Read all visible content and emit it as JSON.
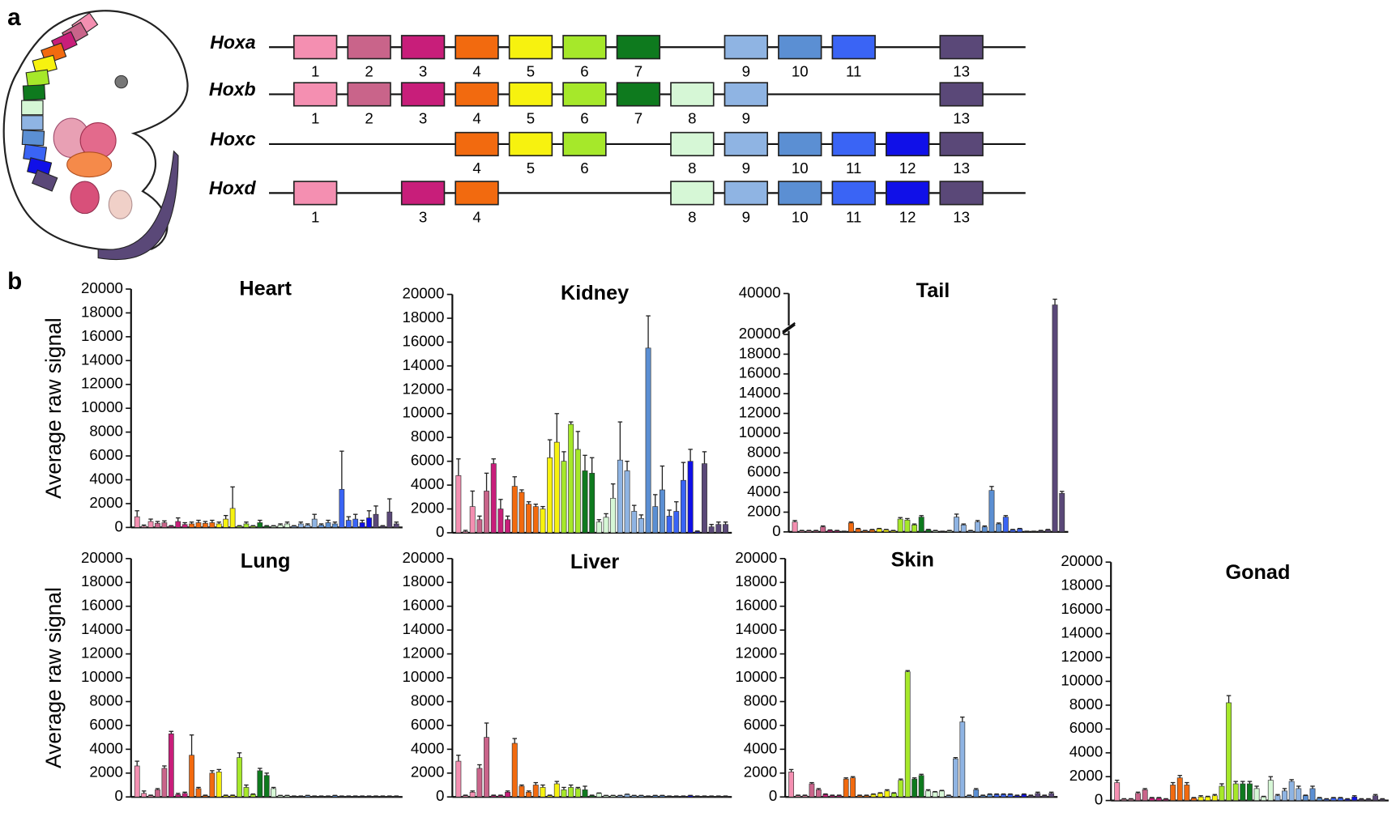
{
  "panel_labels": [
    "a",
    "b"
  ],
  "clusters": [
    {
      "name": "Hoxa",
      "genes": [
        "1",
        "2",
        "3",
        "4",
        "5",
        "6",
        "7",
        "9",
        "10",
        "11",
        "13"
      ]
    },
    {
      "name": "Hoxb",
      "genes": [
        "1",
        "2",
        "3",
        "4",
        "5",
        "6",
        "7",
        "8",
        "9",
        "13"
      ]
    },
    {
      "name": "Hoxc",
      "genes": [
        "4",
        "5",
        "6",
        "8",
        "9",
        "10",
        "11",
        "12",
        "13"
      ]
    },
    {
      "name": "Hoxd",
      "genes": [
        "1",
        "3",
        "4",
        "8",
        "9",
        "10",
        "11",
        "12",
        "13"
      ]
    }
  ],
  "paralog_colors": [
    "#f48fb1",
    "#c9648a",
    "#c81e7a",
    "#f26a0f",
    "#f7f20f",
    "#a6e82a",
    "#0e7a1e",
    "#d6f7d6",
    "#8fb4e3",
    "#5b8fd3",
    "#3a64f5",
    "#1010e8",
    "#5a4878"
  ],
  "bar_colors": [
    "#f48fb1",
    "#f48fb1",
    "#f48fb1",
    "#c9648a",
    "#c9648a",
    "#c81e7a",
    "#c81e7a",
    "#c81e7a",
    "#f26a0f",
    "#f26a0f",
    "#f26a0f",
    "#f26a0f",
    "#f7f20f",
    "#f7f20f",
    "#f7f20f",
    "#a6e82a",
    "#a6e82a",
    "#a6e82a",
    "#0e7a1e",
    "#0e7a1e",
    "#d6f7d6",
    "#d6f7d6",
    "#d6f7d6",
    "#8fb4e3",
    "#8fb4e3",
    "#8fb4e3",
    "#8fb4e3",
    "#5b8fd3",
    "#5b8fd3",
    "#5b8fd3",
    "#3a64f5",
    "#3a64f5",
    "#3a64f5",
    "#1010e8",
    "#1010e8",
    "#5a4878",
    "#5a4878",
    "#5a4878",
    "#5a4878"
  ],
  "chart_data": [
    {
      "type": "bar",
      "title": "Heart",
      "y_label": "Average raw signal",
      "ylim": [
        0,
        20000
      ],
      "yticks": [
        0,
        2000,
        4000,
        6000,
        8000,
        10000,
        12000,
        14000,
        16000,
        18000,
        20000
      ],
      "values": [
        900,
        100,
        500,
        350,
        400,
        100,
        500,
        250,
        300,
        400,
        350,
        400,
        300,
        700,
        1600,
        100,
        300,
        100,
        400,
        100,
        100,
        200,
        300,
        100,
        300,
        200,
        700,
        200,
        400,
        300,
        3200,
        600,
        700,
        400,
        800,
        1100,
        100,
        1300,
        300
      ],
      "errors": [
        500,
        100,
        200,
        150,
        150,
        50,
        300,
        150,
        150,
        200,
        150,
        200,
        150,
        300,
        1800,
        50,
        150,
        50,
        200,
        50,
        50,
        100,
        150,
        50,
        150,
        100,
        400,
        100,
        200,
        150,
        3200,
        300,
        400,
        200,
        600,
        700,
        50,
        1100,
        150
      ]
    },
    {
      "type": "bar",
      "title": "Kidney",
      "ylim": [
        0,
        20000
      ],
      "yticks": [
        0,
        2000,
        4000,
        6000,
        8000,
        10000,
        12000,
        14000,
        16000,
        18000,
        20000
      ],
      "values": [
        4800,
        100,
        2200,
        1100,
        3500,
        5800,
        2000,
        1100,
        3900,
        3400,
        2400,
        2200,
        2000,
        6300,
        7600,
        6000,
        9100,
        7000,
        5200,
        5000,
        900,
        1300,
        2900,
        6100,
        5200,
        1800,
        1200,
        15500,
        2200,
        3600,
        1400,
        1800,
        4400,
        6000,
        100,
        5800,
        500,
        700,
        700
      ],
      "errors": [
        1400,
        100,
        1300,
        300,
        1500,
        400,
        800,
        300,
        800,
        200,
        200,
        200,
        200,
        1500,
        2400,
        800,
        200,
        1500,
        1300,
        1300,
        200,
        300,
        1200,
        3200,
        800,
        500,
        300,
        2700,
        1000,
        2000,
        500,
        800,
        1500,
        1000,
        50,
        1000,
        200,
        200,
        200
      ]
    },
    {
      "type": "bar",
      "title": "Tail",
      "ylim": [
        0,
        40000
      ],
      "ybreak": [
        20000,
        35000
      ],
      "yticks": [
        0,
        2000,
        4000,
        6000,
        8000,
        10000,
        12000,
        14000,
        16000,
        18000,
        20000,
        40000
      ],
      "values": [
        1000,
        100,
        100,
        100,
        500,
        150,
        100,
        50,
        900,
        300,
        100,
        200,
        300,
        200,
        100,
        1300,
        1200,
        700,
        1500,
        200,
        100,
        50,
        100,
        1500,
        700,
        100,
        1000,
        500,
        4200,
        800,
        1500,
        200,
        300,
        50,
        50,
        100,
        200,
        38000,
        3900
      ],
      "errors": [
        150,
        50,
        50,
        50,
        100,
        50,
        50,
        20,
        100,
        50,
        50,
        50,
        50,
        50,
        50,
        150,
        150,
        100,
        150,
        50,
        50,
        20,
        50,
        300,
        100,
        50,
        150,
        100,
        400,
        100,
        150,
        50,
        50,
        20,
        20,
        50,
        50,
        1000,
        200
      ]
    },
    {
      "type": "bar",
      "title": "Lung",
      "y_label": "Average raw signal",
      "ylim": [
        0,
        20000
      ],
      "yticks": [
        0,
        2000,
        4000,
        6000,
        8000,
        10000,
        12000,
        14000,
        16000,
        18000,
        20000
      ],
      "values": [
        2600,
        300,
        100,
        600,
        2400,
        5300,
        200,
        300,
        3500,
        700,
        100,
        2000,
        2100,
        100,
        100,
        3300,
        800,
        200,
        2200,
        1800,
        700,
        100,
        100,
        50,
        50,
        100,
        50,
        50,
        50,
        100,
        50,
        50,
        50,
        50,
        50,
        50,
        50,
        50,
        50
      ],
      "errors": [
        400,
        200,
        50,
        100,
        200,
        200,
        100,
        100,
        1700,
        100,
        50,
        200,
        200,
        50,
        50,
        400,
        200,
        50,
        200,
        200,
        100,
        30,
        30,
        30,
        30,
        30,
        30,
        30,
        30,
        30,
        30,
        30,
        30,
        30,
        30,
        30,
        30,
        30,
        30
      ]
    },
    {
      "type": "bar",
      "title": "Liver",
      "ylim": [
        0,
        20000
      ],
      "yticks": [
        0,
        2000,
        4000,
        6000,
        8000,
        10000,
        12000,
        14000,
        16000,
        18000,
        20000
      ],
      "values": [
        3000,
        100,
        400,
        2400,
        5000,
        100,
        100,
        400,
        4500,
        900,
        400,
        1000,
        800,
        100,
        1100,
        600,
        800,
        700,
        600,
        100,
        300,
        100,
        100,
        100,
        200,
        100,
        100,
        50,
        100,
        100,
        50,
        50,
        50,
        100,
        50,
        50,
        50,
        50,
        50
      ],
      "errors": [
        500,
        50,
        100,
        300,
        1200,
        50,
        50,
        100,
        400,
        100,
        100,
        200,
        200,
        50,
        200,
        200,
        200,
        100,
        300,
        50,
        30,
        30,
        30,
        30,
        30,
        30,
        30,
        30,
        30,
        30,
        30,
        30,
        30,
        30,
        30,
        30,
        30,
        30,
        30
      ]
    },
    {
      "type": "bar",
      "title": "Skin",
      "ylim": [
        0,
        20000
      ],
      "yticks": [
        0,
        2000,
        4000,
        6000,
        8000,
        10000,
        12000,
        14000,
        16000,
        18000,
        20000
      ],
      "values": [
        2100,
        100,
        100,
        1100,
        600,
        200,
        100,
        100,
        1500,
        1600,
        100,
        100,
        200,
        300,
        500,
        300,
        1400,
        10500,
        1500,
        1800,
        500,
        400,
        500,
        100,
        3200,
        6300,
        100,
        600,
        100,
        200,
        200,
        200,
        200,
        100,
        200,
        100,
        300,
        100,
        300
      ],
      "errors": [
        200,
        50,
        50,
        100,
        100,
        50,
        50,
        50,
        100,
        100,
        50,
        50,
        50,
        50,
        100,
        50,
        100,
        100,
        100,
        100,
        100,
        50,
        50,
        50,
        100,
        400,
        50,
        100,
        50,
        50,
        50,
        50,
        50,
        50,
        50,
        50,
        100,
        50,
        100
      ]
    },
    {
      "type": "bar",
      "title": "Gonad",
      "ylim": [
        0,
        20000
      ],
      "yticks": [
        0,
        2000,
        4000,
        6000,
        8000,
        10000,
        12000,
        14000,
        16000,
        18000,
        20000
      ],
      "values": [
        1500,
        100,
        100,
        600,
        900,
        200,
        200,
        100,
        1300,
        1900,
        1300,
        200,
        300,
        300,
        400,
        1200,
        8200,
        1400,
        1400,
        1400,
        1000,
        300,
        1700,
        400,
        800,
        1600,
        1000,
        400,
        1000,
        200,
        100,
        200,
        200,
        100,
        300,
        100,
        100,
        400,
        100
      ],
      "errors": [
        200,
        50,
        50,
        100,
        100,
        50,
        50,
        50,
        200,
        200,
        200,
        50,
        100,
        50,
        100,
        200,
        600,
        200,
        200,
        200,
        200,
        50,
        300,
        100,
        200,
        150,
        200,
        50,
        200,
        50,
        50,
        50,
        50,
        50,
        100,
        50,
        50,
        100,
        50
      ]
    }
  ]
}
